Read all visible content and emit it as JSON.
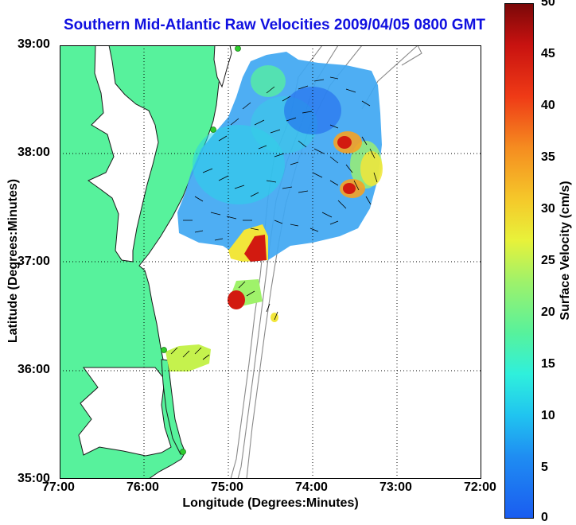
{
  "title": "Southern Mid-Atlantic Raw Velocities 2009/04/05 0800 GMT",
  "x_axis": {
    "label": "Longitude (Degrees:Minutes)",
    "ticks": [
      "77:00",
      "76:00",
      "75:00",
      "74:00",
      "73:00",
      "72:00"
    ]
  },
  "y_axis": {
    "label": "Latitude (Degrees:Minutes)",
    "ticks": [
      "39:00",
      "38:00",
      "37:00",
      "36:00",
      "35:00"
    ]
  },
  "colorbar": {
    "label": "Surface Velocity (cm/s)",
    "ticks": [
      "50",
      "45",
      "40",
      "35",
      "30",
      "25",
      "20",
      "15",
      "10",
      "5",
      "0"
    ],
    "range": [
      0,
      50
    ]
  },
  "colors": {
    "land": "#57f29c",
    "land_outline": "#1a1a1a",
    "water": "#ffffff",
    "bathymetry": "#8a8a8a",
    "grid": "#000000",
    "title": "#1010e0",
    "station": "#2ecc2e"
  },
  "map": {
    "extent_lon": [
      -77,
      -72
    ],
    "extent_lat": [
      35,
      39
    ],
    "grid": true,
    "stations": [
      {
        "lon": -74.9,
        "lat": 39.0
      },
      {
        "lon": -75.1,
        "lat": 38.22
      },
      {
        "lon": -75.75,
        "lat": 36.18
      },
      {
        "lon": -75.5,
        "lat": 35.25
      }
    ]
  }
}
